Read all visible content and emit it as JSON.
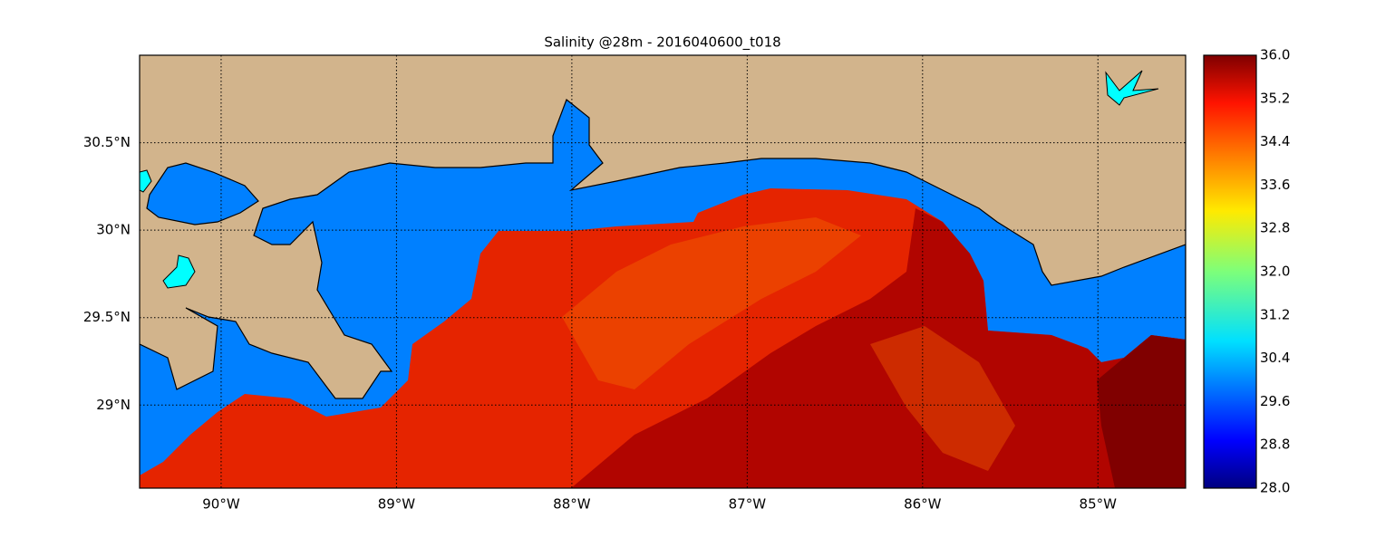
{
  "chart_data": {
    "type": "map",
    "title": "Salinity @28m - 2016040600_t018",
    "xlim": [
      -90.465,
      -84.5
    ],
    "ylim": [
      28.525,
      31.0
    ],
    "xticks": [
      {
        "value": -90,
        "label": "90°W"
      },
      {
        "value": -89,
        "label": "89°W"
      },
      {
        "value": -88,
        "label": "88°W"
      },
      {
        "value": -87,
        "label": "87°W"
      },
      {
        "value": -86,
        "label": "86°W"
      },
      {
        "value": -85,
        "label": "85°W"
      }
    ],
    "yticks": [
      {
        "value": 29,
        "label": "29°N"
      },
      {
        "value": 29.5,
        "label": "29.5°N"
      },
      {
        "value": 30,
        "label": "30°N"
      },
      {
        "value": 30.5,
        "label": "30.5°N"
      }
    ],
    "grid": true,
    "colorbar": {
      "lim": [
        28,
        36
      ],
      "ticks": [
        {
          "value": 28,
          "label": "28.0"
        },
        {
          "value": 28.8,
          "label": "28.8"
        },
        {
          "value": 29.6,
          "label": "29.6"
        },
        {
          "value": 30.4,
          "label": "30.4"
        },
        {
          "value": 31.2,
          "label": "31.2"
        },
        {
          "value": 32,
          "label": "32.0"
        },
        {
          "value": 32.8,
          "label": "32.8"
        },
        {
          "value": 33.6,
          "label": "33.6"
        },
        {
          "value": 34.4,
          "label": "34.4"
        },
        {
          "value": 35.2,
          "label": "35.2"
        },
        {
          "value": 36,
          "label": "36.0"
        }
      ]
    }
  }
}
